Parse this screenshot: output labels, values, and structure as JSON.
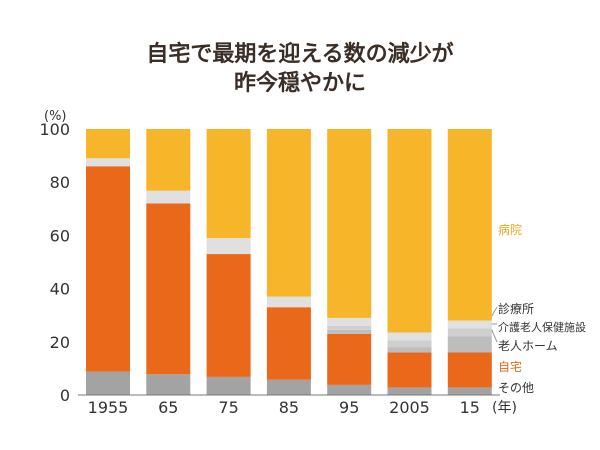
{
  "chart_data": {
    "type": "bar",
    "stacked": true,
    "title_lines": [
      "自宅で最期を迎える数の減少が",
      "昨今穏やかに"
    ],
    "ylabel": "(%)",
    "xlabel": "(年)",
    "ylim": [
      0,
      100
    ],
    "yticks": [
      "0",
      "20",
      "40",
      "60",
      "80",
      "100"
    ],
    "categories": [
      "1955",
      "65",
      "75",
      "85",
      "95",
      "2005",
      "15"
    ],
    "series": [
      {
        "name": "その他",
        "color": "#a3a3a3",
        "values": [
          8.8,
          7.8,
          6.8,
          5.8,
          3.8,
          2.8,
          2.8
        ]
      },
      {
        "name": "自宅",
        "color": "#e9681a",
        "values": [
          77.2,
          64.2,
          46.2,
          27.2,
          19.2,
          13.2,
          13.2
        ]
      },
      {
        "name": "老人ホーム",
        "color": "#bdbdbd",
        "values": [
          0,
          0,
          0,
          0,
          1.5,
          2.0,
          6.0
        ]
      },
      {
        "name": "介護老人保健施設",
        "color": "#cfcfcf",
        "values": [
          0,
          0,
          0,
          0,
          1.5,
          2.5,
          3.0
        ]
      },
      {
        "name": "診療所",
        "color": "#e0e0e0",
        "values": [
          3.0,
          4.8,
          6.0,
          4.0,
          3.0,
          3.0,
          3.0
        ]
      },
      {
        "name": "病院",
        "color": "#f7b52a",
        "values": [
          11.0,
          23.2,
          41.0,
          63.0,
          71.0,
          76.5,
          72.0
        ]
      }
    ],
    "grid": false
  }
}
